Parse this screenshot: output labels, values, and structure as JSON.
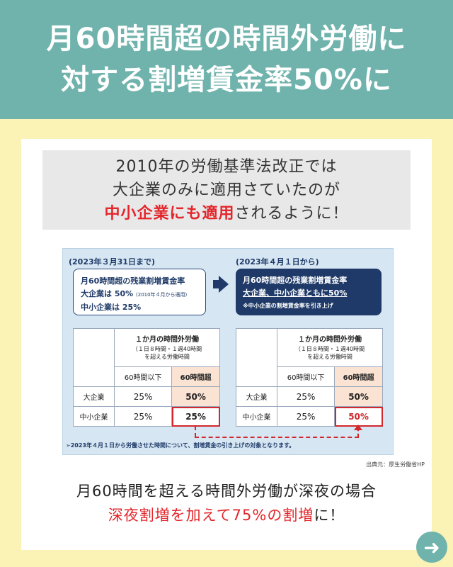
{
  "header": {
    "line1": "月60時間超の時間外労働に",
    "line2": "対する割増賃金率50%に"
  },
  "intro": {
    "line1": "2010年の労働基準法改正では",
    "line2": "大企業のみに適用さていたのが",
    "line3_red": "中小企業にも適用",
    "line3_rest": "されるように！"
  },
  "figure": {
    "left": {
      "date": "(2023年３月31日まで)",
      "callout_title": "月60時間超の残業割増賃金率",
      "line_large": "大企業は 50%",
      "line_large_note": "(2010年４月から適用)",
      "line_sme": "中小企業は 25%"
    },
    "right": {
      "date": "(2023年４月１日から)",
      "callout_title": "月60時間超の残業割増賃金率",
      "line_both": "大企業、中小企業ともに50%",
      "note": "※中小企業の割増賃金率を引き上げ"
    },
    "table": {
      "head_title": "１か月の時間外労働",
      "head_sub1": "（１日８時間・１週40時間",
      "head_sub2": "を超える労働時間",
      "col_under": "60時間以下",
      "col_over": "60時間超",
      "row_large": "大企業",
      "row_sme": "中小企業"
    },
    "left_values": {
      "large_under": "25%",
      "large_over": "50%",
      "sme_under": "25%",
      "sme_over": "25%"
    },
    "right_values": {
      "large_under": "25%",
      "large_over": "50%",
      "sme_under": "25%",
      "sme_over": "50%"
    },
    "footnote": "➢2023年４月１日から労働させた時間について、割増賃金の引き上げの対象となります。",
    "source": "出典元：厚生労働省HP"
  },
  "bottom": {
    "line1": "月60時間を超える時間外労働が深夜の場合",
    "line2_red": "深夜割増を加えて75%の割増",
    "line2_rest": "に！"
  },
  "colors": {
    "header_bg": "#6fb3ac",
    "page_bg": "#fbf3b5",
    "accent_red": "#e3262b",
    "navy": "#1f3a68"
  },
  "icons": {
    "next": "arrow-right-icon"
  }
}
